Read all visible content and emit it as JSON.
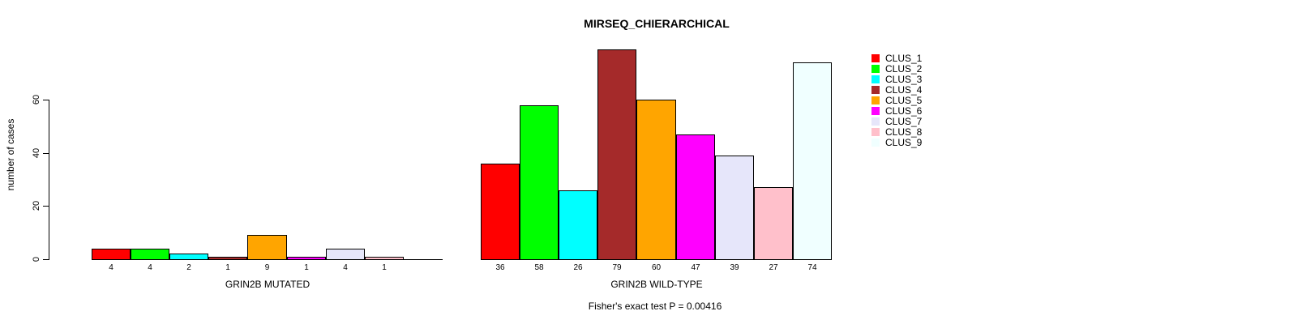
{
  "chart_data": {
    "type": "bar",
    "title": "MIRSEQ_CHIERARCHICAL",
    "ylabel": "number of cases",
    "yticks": [
      0,
      20,
      40,
      60
    ],
    "ylim": [
      0,
      79
    ],
    "grid": false,
    "legend_position": "right",
    "categories": [
      "CLUS_1",
      "CLUS_2",
      "CLUS_3",
      "CLUS_4",
      "CLUS_5",
      "CLUS_6",
      "CLUS_7",
      "CLUS_8",
      "CLUS_9"
    ],
    "colors": [
      "#FF0000",
      "#00FF00",
      "#00FFFF",
      "#A52A2A",
      "#FFA500",
      "#FF00FF",
      "#E6E6FA",
      "#FFC0CB",
      "#F0FFFF"
    ],
    "groups": [
      {
        "label": "GRIN2B MUTATED",
        "values": [
          4,
          4,
          2,
          1,
          9,
          1,
          4,
          1,
          0
        ]
      },
      {
        "label": "GRIN2B WILD-TYPE",
        "values": [
          36,
          58,
          26,
          79,
          60,
          47,
          39,
          27,
          74
        ]
      }
    ],
    "annotation": "Fisher's exact test P = 0.00416",
    "bar_border_color": "#000000",
    "background_color": "#FFFFFF"
  }
}
